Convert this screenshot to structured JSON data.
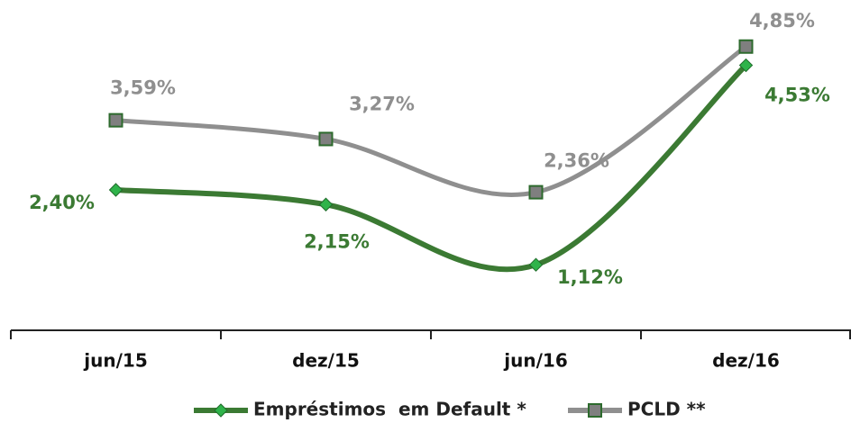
{
  "chart_data": {
    "type": "line",
    "categories": [
      "jun/15",
      "dez/15",
      "jun/16",
      "dez/16"
    ],
    "series": [
      {
        "name": "Empréstimos  em Default *",
        "color": "#3b7a33",
        "marker_color": "#2fb34a",
        "values": [
          2.4,
          2.15,
          1.12,
          4.53
        ],
        "value_labels": [
          "2,40%",
          "2,15%",
          "1,12%",
          "4,53%"
        ]
      },
      {
        "name": "PCLD **",
        "color": "#8f8f8f",
        "marker_color": "#7f7f7f",
        "values": [
          3.59,
          3.27,
          2.36,
          4.85
        ],
        "value_labels": [
          "3,59%",
          "3,27%",
          "2,36%",
          "4,85%"
        ]
      }
    ],
    "legend": "bottom"
  }
}
